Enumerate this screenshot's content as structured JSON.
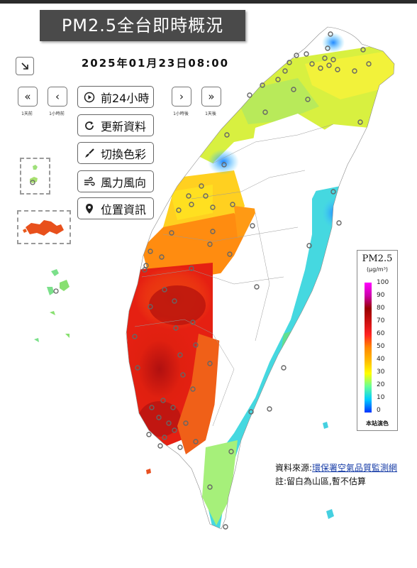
{
  "header": {
    "title": "PM2.5全台即時概況",
    "datetime": "2025年01月23日08:00"
  },
  "navigation": {
    "back_1_day": {
      "icon": "double-chevron-left-icon",
      "caption": "1天前"
    },
    "back_1_hour": {
      "icon": "chevron-left-icon",
      "caption": "1小時前"
    },
    "forward_1_hour": {
      "icon": "chevron-right-icon",
      "caption": "1小時後"
    },
    "forward_1_day": {
      "icon": "double-chevron-right-icon",
      "caption": "1天後"
    }
  },
  "controls": [
    {
      "icon": "play-circle-icon",
      "label": "前24小時"
    },
    {
      "icon": "refresh-icon",
      "label": "更新資料"
    },
    {
      "icon": "paint-brush-icon",
      "label": "切換色彩"
    },
    {
      "icon": "wind-icon",
      "label": "風力風向"
    },
    {
      "icon": "location-pin-icon",
      "label": "位置資訊"
    }
  ],
  "legend": {
    "title": "PM2.5",
    "unit": "(μg/m³)",
    "ticks": [
      "100",
      "90",
      "80",
      "70",
      "60",
      "50",
      "40",
      "30",
      "20",
      "10",
      "0"
    ],
    "footer": "本站演色",
    "colors": [
      "#ff00ff",
      "#990000",
      "#ff2222",
      "#ff8800",
      "#ffff00",
      "#00ccff",
      "#0033ff"
    ]
  },
  "source": {
    "prefix": "資料來源:",
    "link_text": "環保署空氣品質監測網",
    "note": "註:留白為山區,暫不估算"
  }
}
